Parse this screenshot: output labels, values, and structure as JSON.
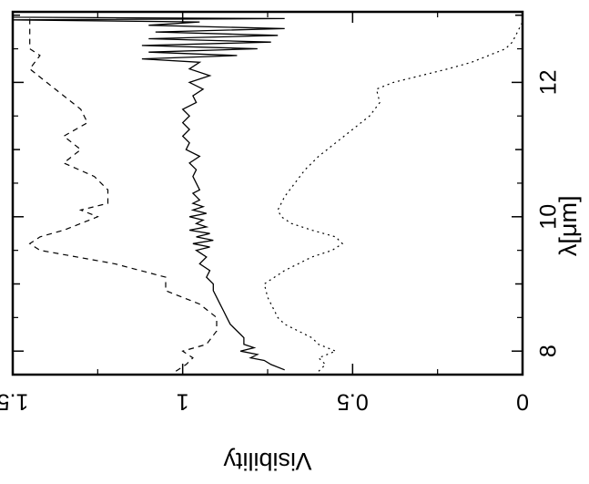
{
  "chart_data": {
    "type": "line",
    "orientation": "plot rotated 90 degrees clockwise: wavelength axis vertical (increasing upward), visibility axis horizontal (increasing leftward)",
    "xlabel": "λ[μm]",
    "ylabel": "Visibility",
    "xlim": [
      7.65,
      13.05
    ],
    "ylim": [
      0,
      1.5
    ],
    "x_ticks": [
      8,
      10,
      12
    ],
    "x_tick_labels": [
      "8",
      "10",
      "12"
    ],
    "y_ticks": [
      0,
      0.5,
      1,
      1.5
    ],
    "y_tick_labels": [
      "0",
      "0.5",
      "1",
      "1.5"
    ],
    "grid": false,
    "series": [
      {
        "style": "solid",
        "x": [
          7.72,
          7.8,
          7.86,
          7.9,
          7.95,
          8.0,
          8.05,
          8.1,
          8.2,
          8.3,
          8.4,
          8.5,
          8.6,
          8.7,
          8.8,
          8.9,
          9.0,
          9.1,
          9.2,
          9.3,
          9.4,
          9.5,
          9.55,
          9.6,
          9.65,
          9.7,
          9.75,
          9.8,
          9.85,
          9.9,
          9.95,
          10.0,
          10.05,
          10.1,
          10.15,
          10.2,
          10.25,
          10.3,
          10.35,
          10.4,
          10.5,
          10.6,
          10.7,
          10.8,
          10.9,
          11.0,
          11.1,
          11.2,
          11.3,
          11.4,
          11.5,
          11.6,
          11.7,
          11.8,
          11.9,
          12.0,
          12.1,
          12.2,
          12.3,
          12.35,
          12.4,
          12.45,
          12.5,
          12.55,
          12.6,
          12.65,
          12.7,
          12.75,
          12.8,
          12.85,
          12.9,
          12.93,
          12.95,
          12.97,
          13.0
        ],
        "values": [
          0.7,
          0.74,
          0.76,
          0.8,
          0.78,
          0.83,
          0.79,
          0.82,
          0.82,
          0.84,
          0.86,
          0.87,
          0.88,
          0.89,
          0.9,
          0.91,
          0.91,
          0.93,
          0.92,
          0.95,
          0.93,
          0.96,
          0.92,
          0.97,
          0.91,
          0.96,
          0.92,
          0.98,
          0.93,
          0.96,
          0.94,
          0.98,
          0.93,
          0.97,
          0.94,
          0.97,
          0.95,
          0.96,
          0.97,
          0.95,
          0.96,
          0.97,
          0.96,
          0.98,
          0.95,
          0.99,
          0.98,
          1.0,
          0.98,
          1.0,
          0.98,
          1.0,
          0.96,
          0.97,
          0.94,
          0.98,
          0.92,
          0.98,
          0.95,
          1.12,
          0.84,
          1.1,
          0.78,
          1.12,
          0.74,
          1.1,
          0.72,
          1.08,
          0.7,
          1.1,
          0.95,
          1.5,
          0.7,
          1.5,
          1.5
        ]
      },
      {
        "style": "dotted",
        "x": [
          7.7,
          7.8,
          7.9,
          8.0,
          8.1,
          8.2,
          8.3,
          8.4,
          8.5,
          8.6,
          8.8,
          9.0,
          9.2,
          9.4,
          9.5,
          9.6,
          9.7,
          9.8,
          9.9,
          10.0,
          10.1,
          10.3,
          10.5,
          10.7,
          10.9,
          11.1,
          11.3,
          11.5,
          11.7,
          11.9,
          12.0,
          12.1,
          12.2,
          12.3,
          12.4,
          12.5,
          12.6,
          12.7,
          12.8,
          12.9,
          13.0
        ],
        "values": [
          0.6,
          0.58,
          0.6,
          0.55,
          0.6,
          0.62,
          0.66,
          0.7,
          0.72,
          0.73,
          0.75,
          0.76,
          0.7,
          0.62,
          0.56,
          0.53,
          0.55,
          0.62,
          0.68,
          0.71,
          0.72,
          0.7,
          0.67,
          0.64,
          0.6,
          0.55,
          0.5,
          0.45,
          0.42,
          0.43,
          0.38,
          0.3,
          0.22,
          0.15,
          0.1,
          0.05,
          0.03,
          0.02,
          0.01,
          0.0,
          0.0
        ]
      },
      {
        "style": "dashed",
        "x": [
          7.7,
          7.8,
          7.9,
          8.0,
          8.1,
          8.3,
          8.5,
          8.7,
          8.9,
          9.1,
          9.3,
          9.5,
          9.6,
          9.7,
          9.8,
          9.9,
          10.0,
          10.1,
          10.2,
          10.4,
          10.6,
          10.8,
          11.0,
          11.2,
          11.4,
          11.6,
          11.8,
          12.0,
          12.2,
          12.4,
          12.5,
          12.6,
          12.7,
          12.8,
          12.9,
          13.0
        ],
        "values": [
          1.02,
          0.99,
          0.97,
          1.0,
          0.93,
          0.9,
          0.9,
          0.95,
          1.05,
          1.05,
          1.2,
          1.42,
          1.45,
          1.42,
          1.35,
          1.3,
          1.25,
          1.3,
          1.22,
          1.22,
          1.26,
          1.35,
          1.3,
          1.35,
          1.28,
          1.3,
          1.35,
          1.4,
          1.45,
          1.42,
          1.45,
          1.45,
          1.45,
          1.45,
          1.45,
          1.45
        ]
      }
    ]
  }
}
